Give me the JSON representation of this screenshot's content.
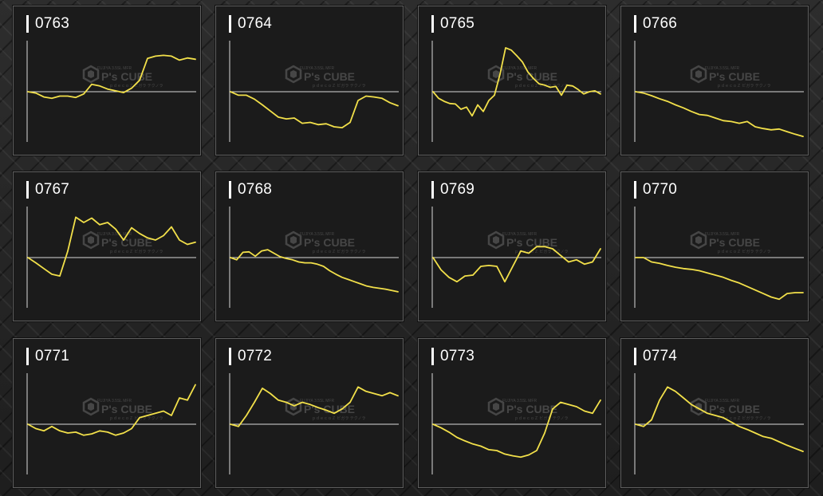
{
  "colors": {
    "line": "#f2e04a",
    "axis": "#d8d8d8",
    "panel_bg": "#1b1b1b",
    "panel_border": "#5e5e5e",
    "title": "#ffffff",
    "watermark": "#6a6a6a"
  },
  "watermark": {
    "logo_text": "P's CUBE",
    "top_text": "FUJIYA 3.5SL MFR",
    "bottom_text": "ｐｄｅｃｏＺ ビガラ テクノラ"
  },
  "panels": [
    {
      "title": "0763"
    },
    {
      "title": "0764"
    },
    {
      "title": "0765"
    },
    {
      "title": "0766"
    },
    {
      "title": "0767"
    },
    {
      "title": "0768"
    },
    {
      "title": "0769"
    },
    {
      "title": "0770"
    },
    {
      "title": "0771"
    },
    {
      "title": "0772"
    },
    {
      "title": "0773"
    },
    {
      "title": "0774"
    }
  ],
  "chart_data": [
    {
      "type": "line",
      "title": "0763",
      "ylim": [
        -1,
        1
      ],
      "x": [
        0,
        1,
        2,
        3,
        4,
        5,
        6,
        7,
        8,
        9,
        10,
        11,
        12,
        13,
        14,
        15,
        16,
        17,
        18,
        19,
        20,
        21
      ],
      "values": [
        0,
        -0.03,
        -0.12,
        -0.15,
        -0.1,
        -0.1,
        -0.13,
        -0.05,
        0.17,
        0.13,
        0.06,
        0.02,
        -0.02,
        0.08,
        0.26,
        0.76,
        0.81,
        0.83,
        0.81,
        0.72,
        0.77,
        0.74
      ]
    },
    {
      "type": "line",
      "title": "0764",
      "ylim": [
        -1,
        1
      ],
      "x": [
        0,
        1,
        2,
        3,
        4,
        5,
        6,
        7,
        8,
        9,
        10,
        11,
        12,
        13,
        14,
        15,
        16,
        17,
        18,
        19,
        20,
        21
      ],
      "values": [
        0,
        -0.08,
        -0.08,
        -0.17,
        -0.3,
        -0.44,
        -0.58,
        -0.62,
        -0.6,
        -0.72,
        -0.7,
        -0.75,
        -0.73,
        -0.8,
        -0.82,
        -0.7,
        -0.2,
        -0.1,
        -0.12,
        -0.15,
        -0.25,
        -0.32
      ]
    },
    {
      "type": "line",
      "title": "0765",
      "ylim": [
        -1,
        1
      ],
      "x": [
        0,
        1,
        2,
        3,
        4,
        5,
        6,
        7,
        8,
        9,
        10,
        11,
        12,
        13,
        14,
        15,
        16,
        17,
        18,
        19,
        20,
        21,
        22,
        23,
        24,
        25,
        26,
        27,
        28,
        29,
        30
      ],
      "values": [
        0,
        -0.15,
        -0.22,
        -0.27,
        -0.28,
        -0.4,
        -0.35,
        -0.55,
        -0.3,
        -0.45,
        -0.2,
        -0.08,
        0.4,
        1.0,
        0.95,
        0.82,
        0.68,
        0.45,
        0.3,
        0.18,
        0.15,
        0.1,
        0.12,
        -0.08,
        0.15,
        0.13,
        0.05,
        -0.05,
        0.0,
        0.02,
        -0.05
      ]
    },
    {
      "type": "line",
      "title": "0766",
      "ylim": [
        -1,
        1
      ],
      "x": [
        0,
        1,
        2,
        3,
        4,
        5,
        6,
        7,
        8,
        9,
        10,
        11,
        12,
        13,
        14,
        15,
        16,
        17,
        18,
        19,
        20,
        21
      ],
      "values": [
        0,
        -0.03,
        -0.09,
        -0.16,
        -0.22,
        -0.3,
        -0.37,
        -0.45,
        -0.52,
        -0.54,
        -0.6,
        -0.66,
        -0.68,
        -0.72,
        -0.68,
        -0.8,
        -0.84,
        -0.87,
        -0.85,
        -0.91,
        -0.97,
        -1.02
      ]
    },
    {
      "type": "line",
      "title": "0767",
      "ylim": [
        -1,
        1
      ],
      "x": [
        0,
        1,
        2,
        3,
        4,
        5,
        6,
        7,
        8,
        9,
        10,
        11,
        12,
        13,
        14,
        15,
        16,
        17,
        18,
        19,
        20,
        21
      ],
      "values": [
        0,
        -0.12,
        -0.25,
        -0.38,
        -0.42,
        0.15,
        0.92,
        0.8,
        0.9,
        0.75,
        0.8,
        0.65,
        0.4,
        0.68,
        0.55,
        0.45,
        0.4,
        0.5,
        0.7,
        0.4,
        0.3,
        0.35
      ]
    },
    {
      "type": "line",
      "title": "0768",
      "ylim": [
        -1,
        1
      ],
      "x": [
        0,
        1,
        2,
        3,
        4,
        5,
        6,
        7,
        8,
        9,
        10,
        11,
        12,
        13,
        14,
        15,
        16,
        17,
        18,
        19,
        20,
        21,
        22,
        23,
        24,
        25,
        26,
        27
      ],
      "values": [
        0,
        -0.05,
        0.12,
        0.13,
        0.03,
        0.15,
        0.18,
        0.1,
        0.02,
        -0.02,
        -0.05,
        -0.1,
        -0.12,
        -0.12,
        -0.15,
        -0.2,
        -0.3,
        -0.38,
        -0.45,
        -0.5,
        -0.55,
        -0.6,
        -0.65,
        -0.68,
        -0.7,
        -0.72,
        -0.75,
        -0.78
      ]
    },
    {
      "type": "line",
      "title": "0769",
      "ylim": [
        -1,
        1
      ],
      "x": [
        0,
        1,
        2,
        3,
        4,
        5,
        6,
        7,
        8,
        9,
        10,
        11,
        12,
        13,
        14,
        15,
        16,
        17,
        18,
        19,
        20,
        21
      ],
      "values": [
        0,
        -0.28,
        -0.45,
        -0.55,
        -0.42,
        -0.4,
        -0.2,
        -0.18,
        -0.2,
        -0.55,
        -0.2,
        0.15,
        0.1,
        0.25,
        0.25,
        0.2,
        0.05,
        -0.1,
        -0.05,
        -0.15,
        -0.1,
        0.2
      ]
    },
    {
      "type": "line",
      "title": "0770",
      "ylim": [
        -1,
        1
      ],
      "x": [
        0,
        1,
        2,
        3,
        4,
        5,
        6,
        7,
        8,
        9,
        10,
        11,
        12,
        13,
        14,
        15,
        16,
        17,
        18,
        19,
        20,
        21
      ],
      "values": [
        0,
        0,
        -0.1,
        -0.13,
        -0.18,
        -0.22,
        -0.25,
        -0.27,
        -0.3,
        -0.35,
        -0.4,
        -0.45,
        -0.52,
        -0.58,
        -0.66,
        -0.74,
        -0.82,
        -0.9,
        -0.95,
        -0.82,
        -0.8,
        -0.8
      ]
    },
    {
      "type": "line",
      "title": "0771",
      "ylim": [
        -1,
        1
      ],
      "x": [
        0,
        1,
        2,
        3,
        4,
        5,
        6,
        7,
        8,
        9,
        10,
        11,
        12,
        13,
        14,
        15,
        16,
        17,
        18,
        19,
        20,
        21
      ],
      "values": [
        0,
        -0.1,
        -0.15,
        -0.05,
        -0.15,
        -0.2,
        -0.18,
        -0.25,
        -0.22,
        -0.15,
        -0.18,
        -0.25,
        -0.2,
        -0.1,
        0.15,
        0.2,
        0.25,
        0.3,
        0.2,
        0.6,
        0.55,
        0.9
      ]
    },
    {
      "type": "line",
      "title": "0772",
      "ylim": [
        -1,
        1
      ],
      "x": [
        0,
        1,
        2,
        3,
        4,
        5,
        6,
        7,
        8,
        9,
        10,
        11,
        12,
        13,
        14,
        15,
        16,
        17,
        18,
        19,
        20,
        21
      ],
      "values": [
        0,
        -0.05,
        0.2,
        0.5,
        0.82,
        0.7,
        0.55,
        0.5,
        0.42,
        0.5,
        0.45,
        0.38,
        0.32,
        0.25,
        0.35,
        0.5,
        0.85,
        0.75,
        0.7,
        0.65,
        0.72,
        0.65
      ]
    },
    {
      "type": "line",
      "title": "0773",
      "ylim": [
        -1,
        1
      ],
      "x": [
        0,
        1,
        2,
        3,
        4,
        5,
        6,
        7,
        8,
        9,
        10,
        11,
        12,
        13,
        14,
        15,
        16,
        17,
        18,
        19,
        20,
        21
      ],
      "values": [
        0,
        -0.08,
        -0.18,
        -0.3,
        -0.38,
        -0.45,
        -0.5,
        -0.58,
        -0.6,
        -0.68,
        -0.72,
        -0.75,
        -0.7,
        -0.6,
        -0.2,
        0.35,
        0.5,
        0.45,
        0.4,
        0.3,
        0.25,
        0.55
      ]
    },
    {
      "type": "line",
      "title": "0774",
      "ylim": [
        -1,
        1
      ],
      "x": [
        0,
        1,
        2,
        3,
        4,
        5,
        6,
        7,
        8,
        9,
        10,
        11,
        12,
        13,
        14,
        15,
        16,
        17,
        18,
        19,
        20,
        21
      ],
      "values": [
        0,
        -0.05,
        0.1,
        0.55,
        0.85,
        0.75,
        0.6,
        0.45,
        0.35,
        0.25,
        0.2,
        0.15,
        0.05,
        -0.05,
        -0.12,
        -0.2,
        -0.28,
        -0.32,
        -0.4,
        -0.48,
        -0.55,
        -0.62
      ]
    }
  ]
}
